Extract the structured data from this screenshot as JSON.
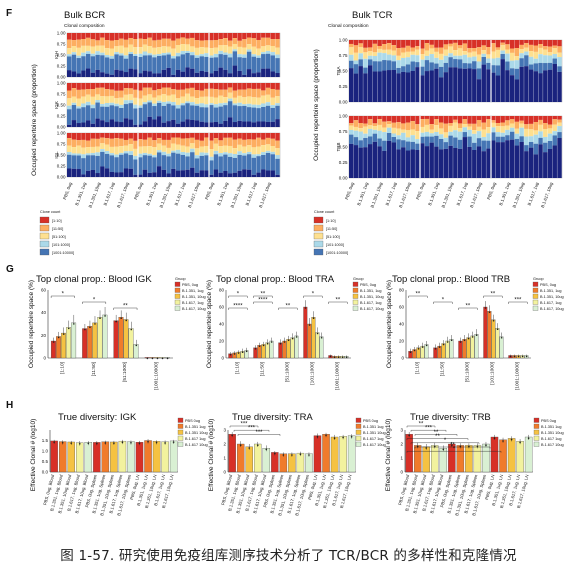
{
  "caption": "图 1-57. 研究使用免疫组库测序技术分析了 TCR/BCR 的多样性和克隆情况",
  "colors": {
    "clonal_bins": [
      "#d73027",
      "#fdae61",
      "#fee090",
      "#abd9e9",
      "#4575b4",
      "#1a237e"
    ],
    "groups": [
      "#d73027",
      "#f07b2b",
      "#f5c242",
      "#f2f29e",
      "#d9f0d3"
    ]
  },
  "panelF": {
    "label": "F",
    "bcr_title": "Bulk BCR",
    "tcr_title": "Bulk TCR",
    "bcr_sub": "Clonal composition",
    "tcr_sub": "Clonal composition",
    "ylabel": "Occupied repertoire space (proportion)",
    "bcr_chains": [
      "IGH",
      "IGK",
      "IGL"
    ],
    "tcr_chains": [
      "TRA",
      "TRB"
    ],
    "yticks": [
      "0.00",
      "0.25",
      "0.50",
      "0.75",
      "1.00"
    ],
    "legend_title": "Clone count",
    "legend_bcr": [
      "[1:10]",
      "[11:50]",
      "[51:100]",
      "[101:1000]",
      "[1001:10000]"
    ],
    "legend_tcr": [
      "[1:10]",
      "[11:50]",
      "[51:100]",
      "[101:1000]",
      "[1001:10000]"
    ]
  },
  "panelG": {
    "label": "G",
    "ylabel": "Occupied repertoire space (%)",
    "xcats": [
      "[1:10]",
      "[11:50]",
      "[51:1000]",
      "[101:1000]",
      "[1001:10000]"
    ],
    "legend_title": "Gruop",
    "legend_items": [
      "PBS, 0ug",
      "B.1.351, 1ug",
      "B.1.351, 10ug",
      "B.1.617, 1ug",
      "B.1.617, 10ug"
    ],
    "charts": [
      {
        "title": "Top clonal prop.: Blood IGK",
        "ylim": [
          0,
          60
        ],
        "yticks": [
          "0",
          "20",
          "40",
          "60"
        ],
        "xcats": [
          "[1:10]",
          "[11:50]",
          "[51:1000]",
          "[1001:10000]"
        ],
        "values": [
          [
            15,
            19,
            22,
            27,
            31
          ],
          [
            26,
            28,
            31,
            36,
            38
          ],
          [
            33,
            36,
            34,
            26,
            12
          ],
          [
            0.5,
            0.5,
            0.5,
            0.5,
            0.5
          ]
        ],
        "errors": [
          [
            3,
            4,
            5,
            6,
            7
          ],
          [
            4,
            5,
            6,
            6,
            7
          ],
          [
            5,
            6,
            6,
            6,
            4
          ],
          [
            0.3,
            0.3,
            0.3,
            0.3,
            0.3
          ]
        ],
        "sig": [
          "*",
          "*",
          "**"
        ]
      },
      {
        "title": "Top clonal prop.: Blood TRA",
        "ylim": [
          0,
          80
        ],
        "yticks": [
          "0",
          "20",
          "40",
          "60",
          "80"
        ],
        "xcats": [
          "[1:10]",
          "[11:50]",
          "[51:1000]",
          "[101:1000]",
          "[1001:10000]"
        ],
        "values": [
          [
            5,
            6,
            7,
            8,
            9
          ],
          [
            12,
            15,
            16,
            18,
            20
          ],
          [
            18,
            20,
            22,
            24,
            26
          ],
          [
            60,
            40,
            48,
            30,
            25
          ],
          [
            3,
            2,
            2,
            2,
            2
          ]
        ],
        "errors": [
          [
            2,
            2,
            2,
            3,
            3
          ],
          [
            3,
            3,
            3,
            4,
            4
          ],
          [
            4,
            4,
            4,
            5,
            5
          ],
          [
            8,
            7,
            7,
            6,
            5
          ],
          [
            1,
            1,
            1,
            1,
            1
          ]
        ],
        "sig": [
          "*",
          "****",
          "**",
          "*",
          "**",
          "****",
          "**"
        ]
      },
      {
        "title": "Top clonal prop.: Blood TRB",
        "ylim": [
          0,
          80
        ],
        "yticks": [
          "0",
          "20",
          "40",
          "60",
          "80"
        ],
        "xcats": [
          "[1:10]",
          "[11:50]",
          "[51:1000]",
          "[101:1000]",
          "[1001:10000]"
        ],
        "values": [
          [
            8,
            10,
            12,
            14,
            16
          ],
          [
            12,
            14,
            17,
            20,
            22
          ],
          [
            20,
            22,
            24,
            26,
            28
          ],
          [
            60,
            55,
            45,
            35,
            25
          ],
          [
            3,
            3,
            3,
            3,
            3
          ]
        ],
        "errors": [
          [
            3,
            3,
            3,
            4,
            4
          ],
          [
            4,
            4,
            4,
            5,
            5
          ],
          [
            4,
            5,
            5,
            5,
            6
          ],
          [
            7,
            7,
            6,
            6,
            5
          ],
          [
            1,
            1,
            1,
            1,
            1
          ]
        ],
        "sig": [
          "**",
          "*",
          "**",
          "**",
          "***"
        ]
      }
    ]
  },
  "panelH": {
    "label": "H",
    "ylabel": "Effective Clonal # (log10)",
    "legend_items": [
      "PBS 0ug",
      "B.1.351 1ug",
      "B.1.351 10ug",
      "B.1.617 1ug",
      "B.1.617 10ug"
    ],
    "xlabels": [
      "PBS, 0ug, Blood",
      "B.1.351, 1ug, Blood",
      "B.1.351, 10ug, Blood",
      "B.1.617, 1ug, Blood",
      "B.1.617, 10ug, Blood",
      "PBS, 0ug, Spleen",
      "B.1.351, 1ug, Spleen",
      "B.1.351, 10ug, Spleen",
      "B.1.617, 1ug, Spleen",
      "B.1.617, 10ug, Spleen",
      "PBS, 0ug, LN",
      "B.1.351, 1ug, LN",
      "B.1.351, 10ug, LN",
      "B.1.617, 1ug, LN",
      "B.1.617, 10ug, LN"
    ],
    "charts": [
      {
        "title": "True diversity: IGK",
        "ylim": [
          0,
          2
        ],
        "yticks": [
          "0.0",
          "0.5",
          "1.0",
          "1.5"
        ],
        "values": [
          1.48,
          1.45,
          1.43,
          1.4,
          1.42,
          1.41,
          1.44,
          1.43,
          1.47,
          1.45,
          1.42,
          1.5,
          1.46,
          1.44,
          1.48
        ],
        "errors": [
          0.05,
          0.06,
          0.05,
          0.07,
          0.05,
          0.06,
          0.05,
          0.05,
          0.06,
          0.05,
          0.06,
          0.07,
          0.05,
          0.06,
          0.05
        ],
        "sig": []
      },
      {
        "title": "True  diversity: TRA",
        "ylim": [
          0,
          3
        ],
        "yticks": [
          "0",
          "1",
          "2",
          "3"
        ],
        "values": [
          2.7,
          2.0,
          1.8,
          2.0,
          1.7,
          1.4,
          1.3,
          1.3,
          1.35,
          1.3,
          2.6,
          2.7,
          2.5,
          2.55,
          2.6
        ],
        "errors": [
          0.15,
          0.2,
          0.2,
          0.15,
          0.2,
          0.1,
          0.1,
          0.1,
          0.1,
          0.1,
          0.15,
          0.1,
          0.15,
          0.1,
          0.1
        ],
        "sig": [
          "***",
          "***",
          "***"
        ]
      },
      {
        "title": "True  diversity: TRB",
        "ylim": [
          0,
          3
        ],
        "yticks": [
          "0",
          "1",
          "2",
          "3"
        ],
        "values": [
          2.7,
          1.9,
          1.8,
          1.9,
          1.7,
          2.0,
          1.9,
          1.9,
          1.9,
          2.0,
          2.5,
          2.3,
          2.4,
          2.2,
          2.5
        ],
        "errors": [
          0.15,
          0.2,
          0.2,
          0.2,
          0.2,
          0.15,
          0.15,
          0.15,
          0.15,
          0.15,
          0.15,
          0.15,
          0.15,
          0.15,
          0.15
        ],
        "sig": [
          "**",
          "***",
          "**",
          "**",
          "*",
          "**",
          "*"
        ]
      }
    ]
  }
}
